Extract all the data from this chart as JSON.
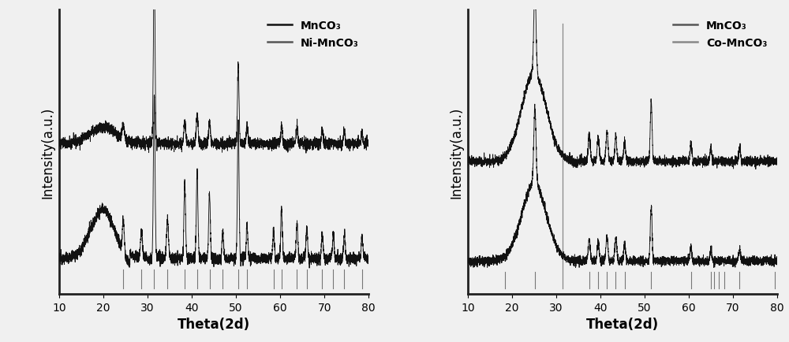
{
  "xlim": [
    10,
    80
  ],
  "xlabel": "Theta(2d)",
  "ylabel": "Intensity(a.u.)",
  "bg_color": "#f0f0f0",
  "line_color_dark": "#111111",
  "line_color_gray": "#555555",
  "line_color_light": "#888888",
  "tick_label_size": 10,
  "axis_label_size": 12,
  "legend_fontsize": 10,
  "left_panel": {
    "legend": [
      "MnCO₃",
      "Ni-MnCO₃"
    ],
    "ref_lines": [
      24.5,
      28.6,
      31.5,
      34.5,
      38.4,
      41.2,
      44.0,
      47.0,
      50.5,
      52.5,
      58.5,
      60.3,
      63.8,
      66.0,
      69.5,
      72.0,
      74.5,
      78.5
    ]
  },
  "right_panel": {
    "legend": [
      "MnCO₃",
      "Co-MnCO₃"
    ],
    "tall_ref_line": 31.5,
    "ref_lines": [
      18.5,
      25.2,
      37.5,
      39.5,
      41.5,
      43.5,
      45.5,
      51.5,
      60.5,
      65.0,
      65.8,
      66.8,
      68.0,
      71.5,
      79.5
    ]
  }
}
